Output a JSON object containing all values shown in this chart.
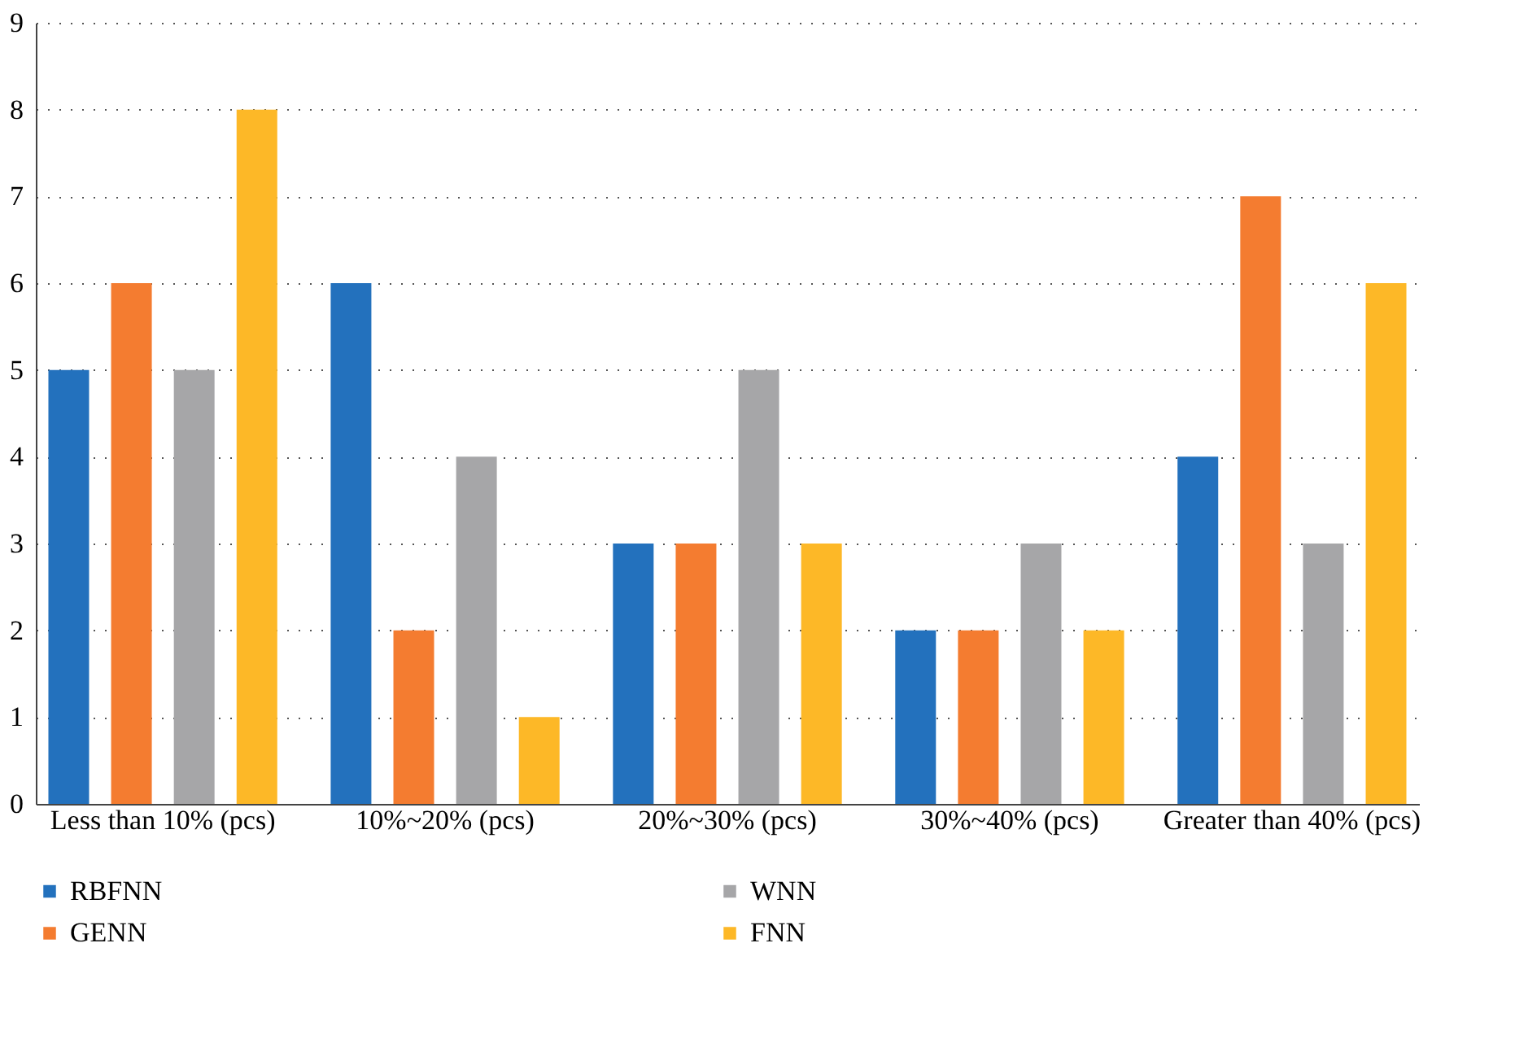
{
  "chart_data": {
    "type": "bar",
    "categories": [
      "Less than 10% (pcs)",
      "10%~20% (pcs)",
      "20%~30% (pcs)",
      "30%~40% (pcs)",
      "Greater than 40% (pcs)"
    ],
    "series": [
      {
        "name": "RBFNN",
        "color": "#2371bd",
        "values": [
          5,
          6,
          3,
          2,
          4
        ]
      },
      {
        "name": "GENN",
        "color": "#f47c30",
        "values": [
          6,
          2,
          3,
          2,
          7
        ]
      },
      {
        "name": "WNN",
        "color": "#a6a6a8",
        "values": [
          5,
          4,
          5,
          3,
          3
        ]
      },
      {
        "name": "FNN",
        "color": "#fdb827",
        "values": [
          8,
          1,
          3,
          2,
          6
        ]
      }
    ],
    "ylim": [
      0,
      9
    ],
    "yticks": [
      0,
      1,
      2,
      3,
      4,
      5,
      6,
      7,
      8,
      9
    ],
    "grid": "y",
    "legend": "bottom left"
  }
}
